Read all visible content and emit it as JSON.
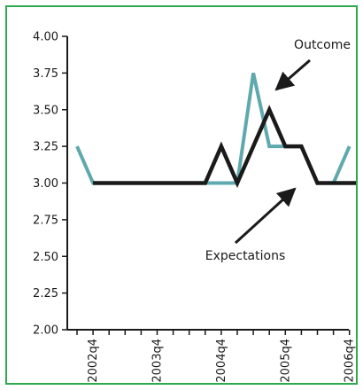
{
  "chart_data": {
    "type": "line",
    "title": "",
    "xlabel": "",
    "ylabel": "",
    "ylim": [
      2.0,
      4.0
    ],
    "yticks": [
      "2.00",
      "2.25",
      "2.50",
      "2.75",
      "3.00",
      "3.25",
      "3.50",
      "3.75",
      "4.00"
    ],
    "x": [
      "2002q3",
      "2002q4",
      "2003q1",
      "2003q2",
      "2003q3",
      "2003q4",
      "2004q1",
      "2004q2",
      "2004q3",
      "2004q4",
      "2005q1",
      "2005q2",
      "2005q3",
      "2005q4",
      "2006q1",
      "2006q2",
      "2006q3",
      "2006q4",
      "2007q1"
    ],
    "xtick_labels": [
      "2002q4",
      "2003q4",
      "2004q4",
      "2005q4",
      "2006q4"
    ],
    "series": [
      {
        "name": "Outcome",
        "color": "#5fa9ae",
        "values": [
          3.25,
          3.0,
          3.0,
          3.0,
          3.0,
          3.0,
          3.0,
          3.0,
          3.0,
          3.0,
          3.0,
          3.75,
          3.25,
          3.25,
          3.25,
          3.0,
          3.0,
          3.25,
          null
        ]
      },
      {
        "name": "Expectations",
        "color": "#1a1a1a",
        "values": [
          null,
          3.0,
          3.0,
          3.0,
          3.0,
          3.0,
          3.0,
          3.0,
          3.0,
          3.25,
          3.0,
          3.25,
          3.5,
          3.25,
          3.25,
          3.0,
          3.0,
          3.0,
          3.0
        ]
      }
    ],
    "annotations": [
      {
        "text": "Outcome",
        "target_series": "Outcome",
        "target_x": "2005q2",
        "target_y": 3.75
      },
      {
        "text": "Expectations",
        "target_series": "Expectations",
        "target_x": "2005q3",
        "target_y": 3.0
      }
    ],
    "grid": false,
    "legend": "none"
  }
}
